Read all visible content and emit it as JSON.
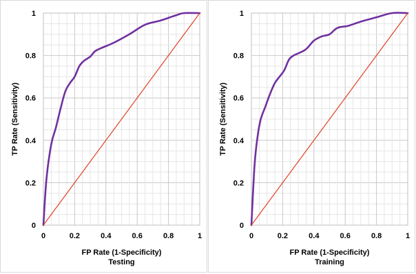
{
  "charts": [
    {
      "caption": "Testing",
      "chart_data": {
        "type": "line",
        "xlabel": "FP Rate (1-Specificity)",
        "ylabel": "TP Rate (Sensitivity)",
        "xlim": [
          0,
          1
        ],
        "ylim": [
          0,
          1
        ],
        "x_ticks": [
          0,
          0.2,
          0.4,
          0.6,
          0.8,
          1
        ],
        "y_ticks": [
          0,
          0.2,
          0.4,
          0.6,
          0.8,
          1
        ],
        "x_tick_labels": [
          "0",
          "0.2",
          "0.4",
          "0.6",
          "0.8",
          "1"
        ],
        "y_tick_labels": [
          "0",
          "0.2",
          "0.4",
          "0.6",
          "0.8",
          "1"
        ],
        "grid": true,
        "series": [
          {
            "color": "#7030a0",
            "x": [
              0,
              0.02,
              0.05,
              0.08,
              0.11,
              0.14,
              0.17,
              0.2,
              0.23,
              0.26,
              0.3,
              0.33,
              0.37,
              0.45,
              0.55,
              0.65,
              0.75,
              0.85,
              0.9,
              1.0
            ],
            "y": [
              0,
              0.22,
              0.38,
              0.46,
              0.55,
              0.63,
              0.67,
              0.7,
              0.75,
              0.775,
              0.795,
              0.82,
              0.835,
              0.86,
              0.9,
              0.945,
              0.965,
              0.99,
              1.0,
              1.0
            ]
          },
          {
            "color": "#e04020",
            "x": [
              0,
              1
            ],
            "y": [
              0,
              1
            ]
          }
        ]
      }
    },
    {
      "caption": "Training",
      "chart_data": {
        "type": "line",
        "xlabel": "FP Rate (1-Specificity)",
        "ylabel": "TP Rate (Sensitivity)",
        "xlim": [
          0,
          1
        ],
        "ylim": [
          0,
          1
        ],
        "x_ticks": [
          0,
          0.2,
          0.4,
          0.6,
          0.8,
          1
        ],
        "y_ticks": [
          0,
          0.2,
          0.4,
          0.6,
          0.8,
          1
        ],
        "x_tick_labels": [
          "0",
          "0.2",
          "0.4",
          "0.6",
          "0.8",
          "1"
        ],
        "y_tick_labels": [
          "0",
          "0.2",
          "0.4",
          "0.6",
          "0.8",
          "1"
        ],
        "grid": true,
        "series": [
          {
            "color": "#7030a0",
            "x": [
              0,
              0.02,
              0.04,
              0.06,
              0.09,
              0.12,
              0.15,
              0.18,
              0.21,
              0.24,
              0.27,
              0.3,
              0.35,
              0.4,
              0.45,
              0.5,
              0.55,
              0.62,
              0.7,
              0.8,
              0.9,
              1.0
            ],
            "y": [
              0,
              0.28,
              0.42,
              0.5,
              0.56,
              0.62,
              0.67,
              0.7,
              0.73,
              0.78,
              0.8,
              0.81,
              0.83,
              0.87,
              0.89,
              0.9,
              0.93,
              0.94,
              0.96,
              0.98,
              1.0,
              1.0
            ]
          },
          {
            "color": "#e04020",
            "x": [
              0,
              1
            ],
            "y": [
              0,
              1
            ]
          }
        ]
      }
    }
  ]
}
